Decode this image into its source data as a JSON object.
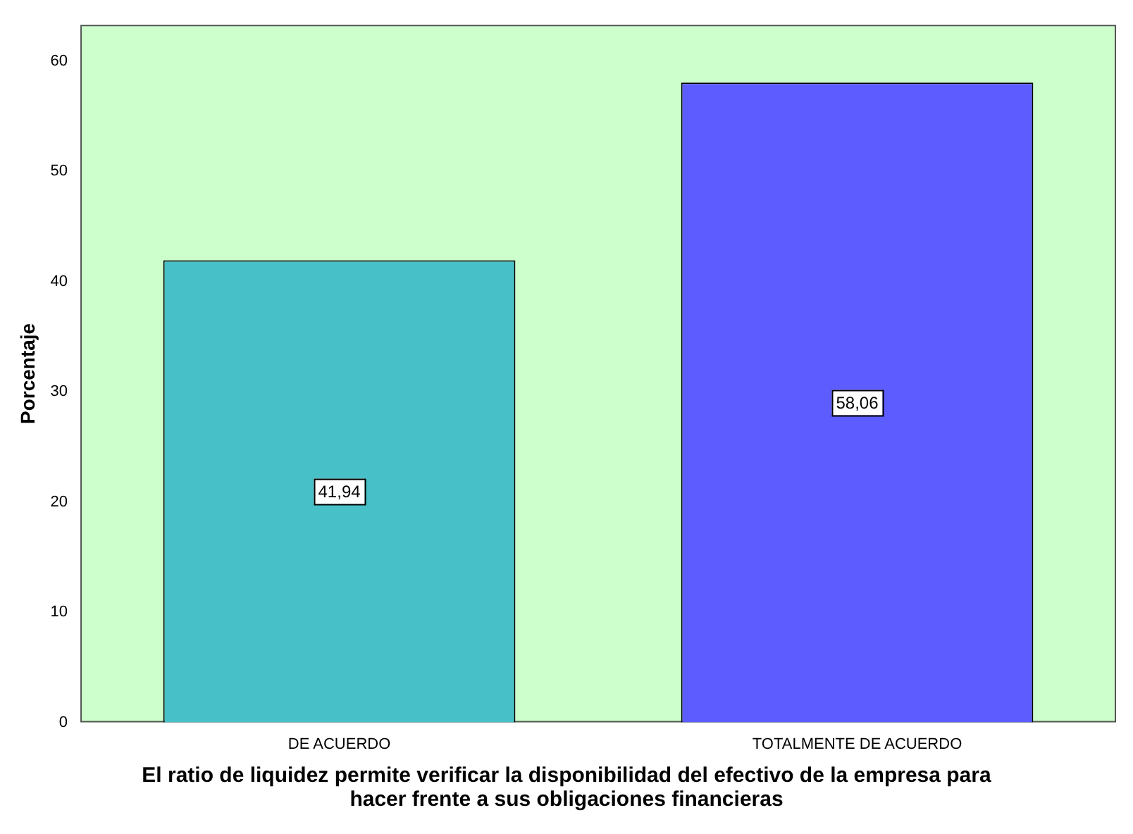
{
  "chart_data": {
    "type": "bar",
    "xlabel": "El ratio de liquidez permite verificar la disponibilidad del efectivo de la empresa para hacer frente a sus obligaciones financieras",
    "ylabel": "Porcentaje",
    "categories": [
      "DE ACUERDO",
      "TOTALMENTE DE ACUERDO"
    ],
    "values": [
      41.94,
      58.06
    ],
    "colors": [
      "#48c0c8",
      "#5c5cff"
    ],
    "value_labels": [
      "41,94",
      "58,06"
    ],
    "ylim": [
      0,
      63.3
    ],
    "yticks": [
      0,
      10,
      20,
      30,
      40,
      50,
      60
    ],
    "grid": false,
    "legend": false
  }
}
